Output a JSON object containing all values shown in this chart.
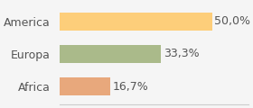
{
  "categories": [
    "Africa",
    "Europa",
    "America"
  ],
  "values": [
    16.7,
    33.3,
    50.0
  ],
  "labels": [
    "16,7%",
    "33,3%",
    "50,0%"
  ],
  "bar_colors": [
    "#E8A87C",
    "#AABA8A",
    "#FDCE7A"
  ],
  "background_color": "#f5f5f5",
  "xlim": [
    0,
    62
  ],
  "bar_height": 0.55,
  "label_fontsize": 9,
  "tick_fontsize": 9
}
